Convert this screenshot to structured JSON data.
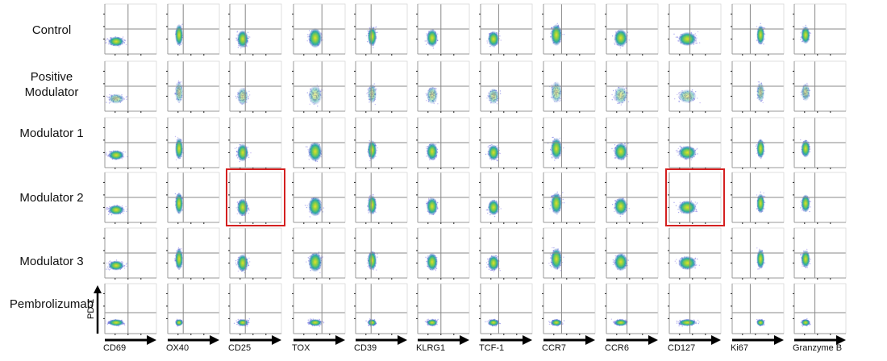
{
  "rows": [
    {
      "label_lines": [
        "Control"
      ]
    },
    {
      "label_lines": [
        "Positive",
        "Modulator"
      ]
    },
    {
      "label_lines": [
        "Modulator 1"
      ]
    },
    {
      "label_lines": [
        "Modulator 2"
      ]
    },
    {
      "label_lines": [
        "Modulator 3"
      ]
    },
    {
      "label_lines": [
        "Pembrolizumab"
      ]
    }
  ],
  "markers": [
    "CD69",
    "OX40",
    "CD25",
    "TOX",
    "CD39",
    "KLRG1",
    "TCF-1",
    "CCR7",
    "CCR6",
    "CD127",
    "Ki67",
    "Granzyme B"
  ],
  "y_axis_label": "PD-1",
  "highlighted_panels": [
    {
      "row": "Modulator 2",
      "marker": "CD25"
    },
    {
      "row": "Modulator 2",
      "marker": "CD127"
    }
  ],
  "colors": {
    "highlight": "#d42020",
    "gate_line": "#888888",
    "panel_border": "#9a9a9a",
    "density_low": "#3a3ad0",
    "density_mid": "#1fa8a0",
    "density_high": "#e8e020"
  }
}
